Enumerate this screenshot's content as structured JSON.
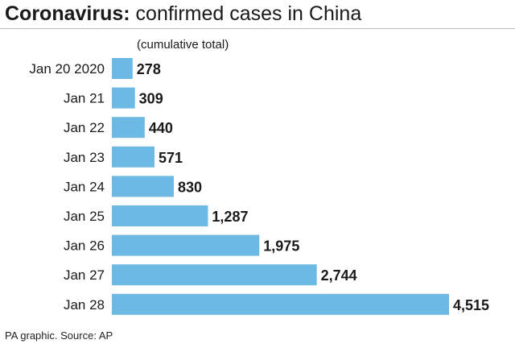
{
  "header": {
    "title_bold": "Coronavirus:",
    "title_rest": " confirmed cases in China"
  },
  "chart_data": {
    "type": "bar",
    "orientation": "horizontal",
    "subtitle": "(cumulative total)",
    "categories": [
      "Jan 20 2020",
      "Jan 21",
      "Jan 22",
      "Jan 23",
      "Jan 24",
      "Jan 25",
      "Jan 26",
      "Jan 27",
      "Jan 28"
    ],
    "values": [
      278,
      309,
      440,
      571,
      830,
      1287,
      1975,
      2744,
      4515
    ],
    "value_labels": [
      "278",
      "309",
      "440",
      "571",
      "830",
      "1,287",
      "1,975",
      "2,744",
      "4,515"
    ],
    "xlim": [
      0,
      4515
    ],
    "bar_color": "#6cb9e3",
    "grid": false,
    "legend": "none"
  },
  "footer": {
    "source": "PA graphic. Source: AP"
  }
}
